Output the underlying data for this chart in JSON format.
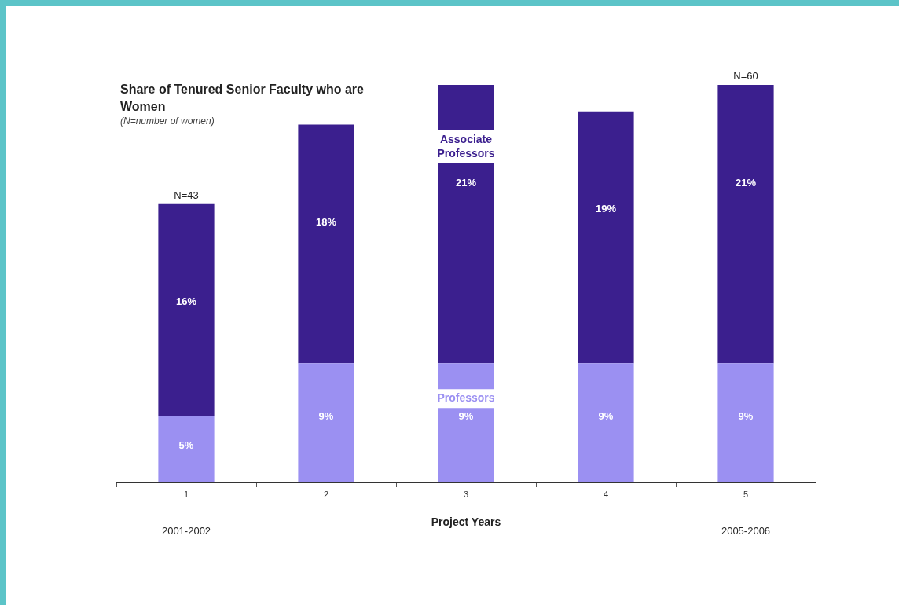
{
  "chart_data": {
    "type": "bar",
    "title": "Share of Tenured Senior Faculty who are Women",
    "subtitle": "(N=number of women)",
    "xlabel": "Project Years",
    "categories": [
      "1",
      "2",
      "3",
      "4",
      "5"
    ],
    "stacked": true,
    "legend": false,
    "grid": false,
    "tick_labels": "x",
    "series": [
      {
        "name": "Professors",
        "color": "#9b90f2",
        "values": [
          5,
          9,
          9,
          9,
          9
        ],
        "value_labels": [
          "5%",
          "9%",
          "9%",
          "9%",
          "9%"
        ]
      },
      {
        "name": "Associate Professors",
        "color": "#3b1f8e",
        "values": [
          16,
          18,
          21,
          19,
          21
        ],
        "value_labels": [
          "16%",
          "18%",
          "21%",
          "19%",
          "21%"
        ]
      }
    ],
    "annotations": [
      {
        "text": "N=43",
        "x": "1",
        "y": 21
      },
      {
        "text": "N=60",
        "x": "5",
        "y": 30
      },
      "2001-2002",
      "2005-2006"
    ]
  }
}
